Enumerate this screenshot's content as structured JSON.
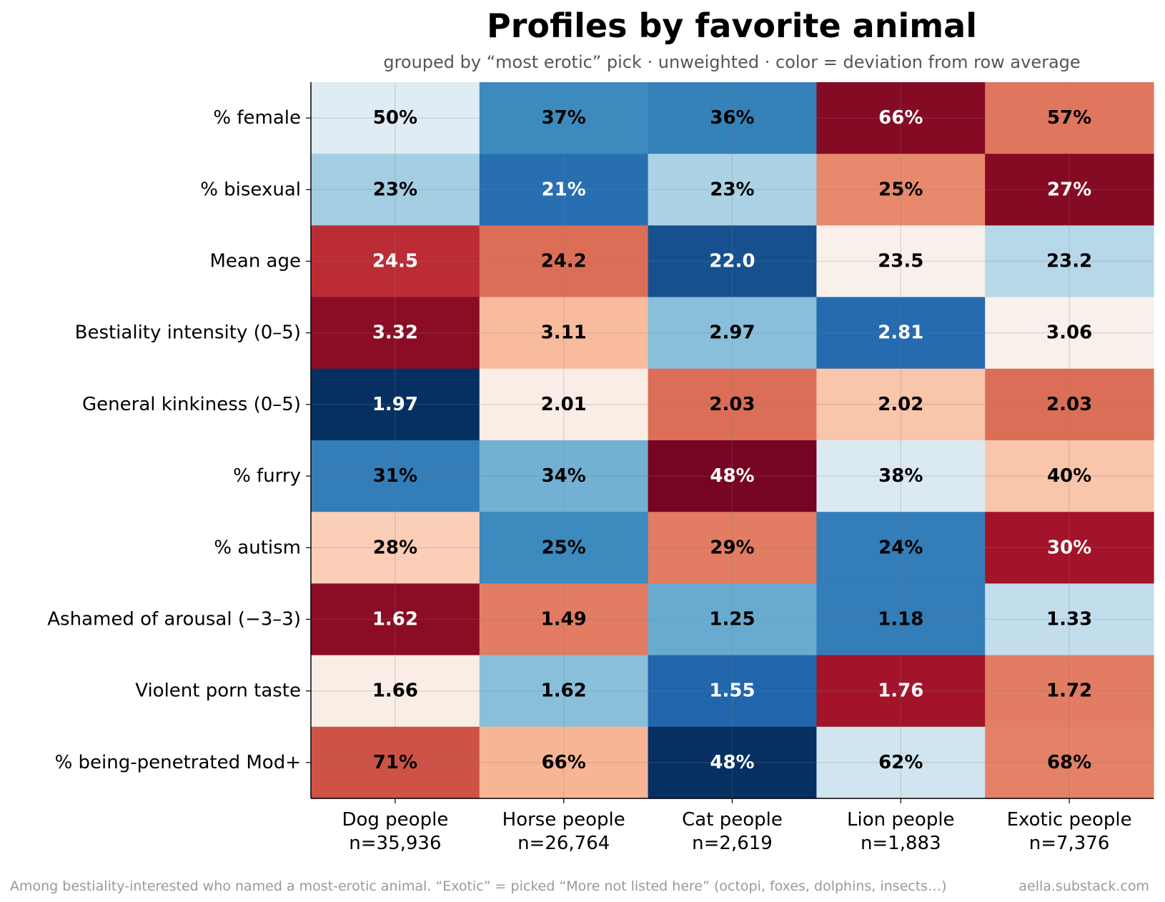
{
  "chart_data": {
    "type": "heatmap",
    "title": "Profiles by favorite animal",
    "subtitle": "grouped by “most erotic” pick · unweighted · color = deviation from row average",
    "columns": [
      {
        "label": "Dog people",
        "n": "n=35,936"
      },
      {
        "label": "Horse people",
        "n": "n=26,764"
      },
      {
        "label": "Cat people",
        "n": "n=2,619"
      },
      {
        "label": "Lion people",
        "n": "n=1,883"
      },
      {
        "label": "Exotic people",
        "n": "n=7,376"
      }
    ],
    "rows": [
      {
        "label": "% female",
        "values": [
          "50%",
          "37%",
          "36%",
          "66%",
          "57%"
        ],
        "deviation": [
          -0.05,
          -0.55,
          -0.6,
          0.9,
          0.42
        ]
      },
      {
        "label": "% bisexual",
        "values": [
          "23%",
          "21%",
          "23%",
          "25%",
          "27%"
        ],
        "deviation": [
          -0.2,
          -0.7,
          -0.18,
          0.35,
          0.9
        ]
      },
      {
        "label": "Mean age",
        "values": [
          "24.5",
          "24.2",
          "22.0",
          "23.5",
          "23.2"
        ],
        "deviation": [
          0.68,
          0.45,
          -0.85,
          0.02,
          -0.15
        ]
      },
      {
        "label": "Bestiality intensity (0–5)",
        "values": [
          "3.32",
          "3.11",
          "2.97",
          "2.81",
          "3.06"
        ],
        "deviation": [
          0.88,
          0.18,
          -0.28,
          -0.72,
          0.02
        ]
      },
      {
        "label": "General kinkiness (0–5)",
        "values": [
          "1.97",
          "2.01",
          "2.03",
          "2.02",
          "2.03"
        ],
        "deviation": [
          -1.0,
          0.03,
          0.45,
          0.15,
          0.45
        ]
      },
      {
        "label": "% furry",
        "values": [
          "31%",
          "34%",
          "48%",
          "38%",
          "40%"
        ],
        "deviation": [
          -0.62,
          -0.35,
          0.95,
          -0.06,
          0.15
        ]
      },
      {
        "label": "% autism",
        "values": [
          "28%",
          "25%",
          "29%",
          "24%",
          "30%"
        ],
        "deviation": [
          0.12,
          -0.55,
          0.4,
          -0.62,
          0.8
        ]
      },
      {
        "label": "Ashamed of arousal (−3–3)",
        "values": [
          "1.62",
          "1.49",
          "1.25",
          "1.18",
          "1.33"
        ],
        "deviation": [
          0.88,
          0.4,
          -0.38,
          -0.62,
          -0.12
        ]
      },
      {
        "label": "Violent porn taste",
        "values": [
          "1.66",
          "1.62",
          "1.55",
          "1.76",
          "1.72"
        ],
        "deviation": [
          0.03,
          -0.28,
          -0.75,
          0.8,
          0.4
        ]
      },
      {
        "label": "% being-penetrated Mod+",
        "values": [
          "71%",
          "66%",
          "48%",
          "62%",
          "68%"
        ],
        "deviation": [
          0.55,
          0.2,
          -1.0,
          -0.08,
          0.38
        ]
      }
    ],
    "colormap": "RdBu_r (blue = below row average, red = above)",
    "colors": {
      "negative": "#053061",
      "neutral": "#f7f7f7",
      "positive": "#67001f"
    },
    "grid": true,
    "footnote": "Among bestiality-interested who named a most-erotic animal. “Exotic” = picked “More not listed here” (octopi, foxes, dolphins, insects…)",
    "source": "aella.substack.com"
  }
}
